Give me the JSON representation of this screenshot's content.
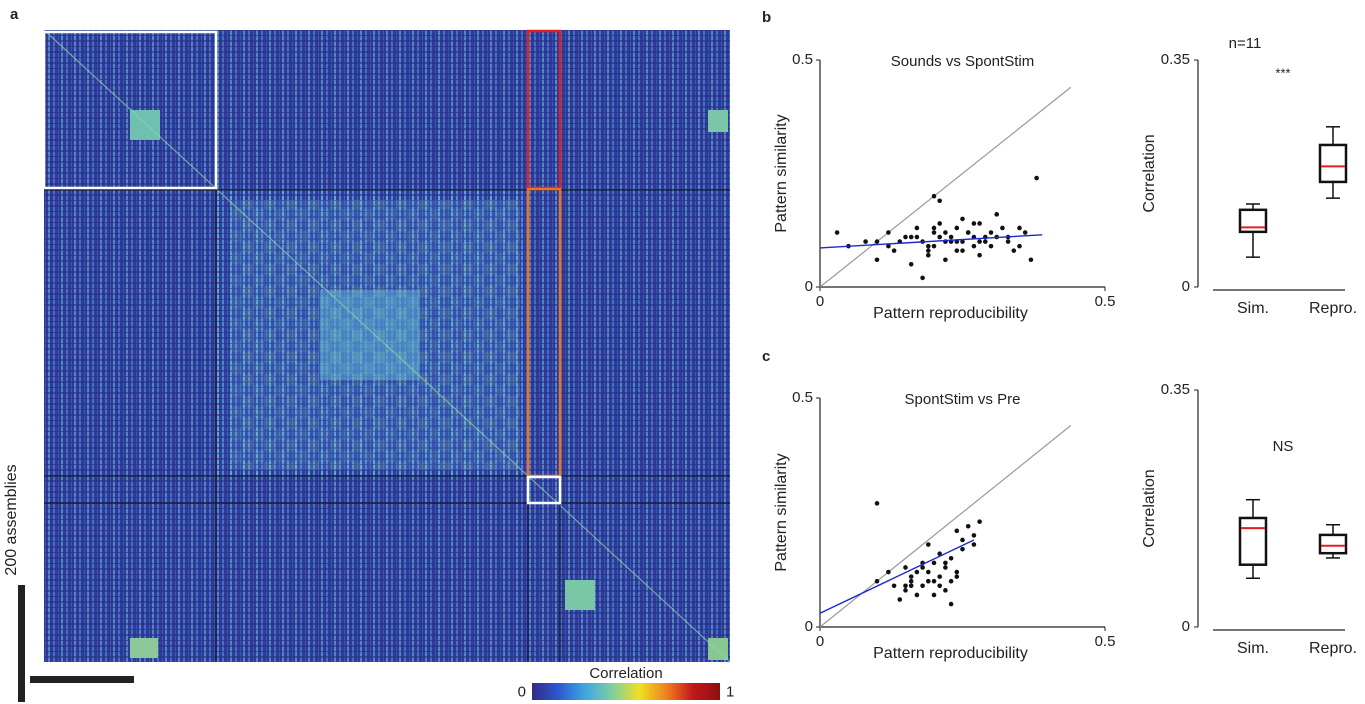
{
  "chart_data": [
    {
      "type": "heatmap",
      "panel": "a",
      "scale_bar_label": "200 assemblies",
      "colormap": [
        "#352a87",
        "#2c5ad0",
        "#3fa8e0",
        "#7fd0a0",
        "#f0e020",
        "#f08020",
        "#c01818",
        "#8b1010"
      ],
      "colorbar": {
        "label": "Correlation",
        "ticks": [
          0,
          1
        ]
      }
    },
    {
      "type": "scatter",
      "panel": "b",
      "title": "Sounds vs SpontStim",
      "xlabel": "Pattern reproducibility",
      "ylabel": "Pattern similarity",
      "xlim": [
        0,
        0.5
      ],
      "ylim": [
        0,
        0.5
      ],
      "xticks": [
        0,
        0.5
      ],
      "yticks": [
        0,
        0.5
      ],
      "color": "#111111",
      "x": [
        0.03,
        0.05,
        0.08,
        0.1,
        0.12,
        0.13,
        0.15,
        0.16,
        0.17,
        0.18,
        0.19,
        0.2,
        0.2,
        0.21,
        0.22,
        0.22,
        0.23,
        0.24,
        0.24,
        0.25,
        0.25,
        0.26,
        0.27,
        0.27,
        0.28,
        0.28,
        0.29,
        0.3,
        0.3,
        0.31,
        0.32,
        0.33,
        0.34,
        0.35,
        0.36,
        0.37,
        0.38,
        0.14,
        0.17,
        0.19,
        0.21,
        0.23,
        0.26,
        0.29,
        0.31,
        0.18,
        0.2,
        0.24,
        0.12,
        0.16,
        0.22,
        0.25,
        0.27,
        0.33,
        0.1,
        0.19,
        0.28,
        0.2,
        0.21,
        0.35
      ],
      "y": [
        0.12,
        0.09,
        0.1,
        0.06,
        0.12,
        0.08,
        0.11,
        0.05,
        0.13,
        0.1,
        0.07,
        0.12,
        0.09,
        0.14,
        0.1,
        0.06,
        0.11,
        0.13,
        0.08,
        0.1,
        0.15,
        0.12,
        0.09,
        0.11,
        0.14,
        0.07,
        0.1,
        0.12,
        0.09,
        0.11,
        0.13,
        0.1,
        0.08,
        0.09,
        0.12,
        0.06,
        0.24,
        0.1,
        0.11,
        0.09,
        0.19,
        0.1,
        0.12,
        0.11,
        0.16,
        0.02,
        0.13,
        0.1,
        0.09,
        0.11,
        0.12,
        0.08,
        0.14,
        0.11,
        0.1,
        0.08,
        0.1,
        0.2,
        0.11,
        0.13
      ],
      "fit": {
        "color": "#1a2ad0",
        "x": [
          0,
          0.39
        ],
        "y": [
          0.086,
          0.115
        ]
      },
      "diagonal": {
        "color": "#999999",
        "x": [
          0,
          0.44
        ],
        "y": [
          0,
          0.44
        ]
      }
    },
    {
      "type": "box",
      "title": "n=11",
      "annotation": "***",
      "ylabel": "Correlation",
      "ylim": [
        0,
        0.35
      ],
      "yticks": [
        0,
        0.35
      ],
      "median_color": "#e02020",
      "categories": [
        "Sim.",
        "Repro."
      ],
      "boxes": [
        {
          "whislo": 0.046,
          "q1": 0.085,
          "med": 0.092,
          "q3": 0.119,
          "whishi": 0.128
        },
        {
          "whislo": 0.137,
          "q1": 0.162,
          "med": 0.186,
          "q3": 0.219,
          "whishi": 0.247
        }
      ]
    },
    {
      "type": "scatter",
      "panel": "c",
      "title": "SpontStim vs Pre",
      "xlabel": "Pattern reproducibility",
      "ylabel": "Pattern similarity",
      "xlim": [
        0,
        0.5
      ],
      "ylim": [
        0,
        0.5
      ],
      "xticks": [
        0,
        0.5
      ],
      "yticks": [
        0,
        0.5
      ],
      "color": "#111111",
      "x": [
        0.1,
        0.12,
        0.13,
        0.1,
        0.15,
        0.16,
        0.17,
        0.18,
        0.18,
        0.19,
        0.19,
        0.2,
        0.2,
        0.21,
        0.21,
        0.22,
        0.22,
        0.23,
        0.23,
        0.24,
        0.24,
        0.25,
        0.26,
        0.27,
        0.28,
        0.14,
        0.16,
        0.17,
        0.2,
        0.22,
        0.25,
        0.23,
        0.19,
        0.21,
        0.18,
        0.16,
        0.27,
        0.15,
        0.15,
        0.24
      ],
      "y": [
        0.1,
        0.12,
        0.09,
        0.27,
        0.08,
        0.11,
        0.07,
        0.13,
        0.09,
        0.18,
        0.1,
        0.14,
        0.07,
        0.11,
        0.16,
        0.13,
        0.08,
        0.1,
        0.15,
        0.21,
        0.12,
        0.17,
        0.22,
        0.2,
        0.23,
        0.06,
        0.09,
        0.12,
        0.1,
        0.14,
        0.19,
        0.05,
        0.12,
        0.09,
        0.14,
        0.1,
        0.18,
        0.09,
        0.13,
        0.11
      ],
      "fit": {
        "color": "#1a2ad0",
        "x": [
          0,
          0.27
        ],
        "y": [
          0.03,
          0.19
        ]
      },
      "diagonal": {
        "color": "#999999",
        "x": [
          0,
          0.44
        ],
        "y": [
          0,
          0.44
        ]
      }
    },
    {
      "type": "box",
      "annotation": "NS",
      "ylabel": "Correlation",
      "ylim": [
        0,
        0.35
      ],
      "yticks": [
        0,
        0.35
      ],
      "median_color": "#e02020",
      "categories": [
        "Sim.",
        "Repro."
      ],
      "boxes": [
        {
          "whislo": 0.072,
          "q1": 0.092,
          "med": 0.146,
          "q3": 0.161,
          "whishi": 0.188
        },
        {
          "whislo": 0.102,
          "q1": 0.109,
          "med": 0.12,
          "q3": 0.136,
          "whishi": 0.151
        }
      ]
    }
  ]
}
